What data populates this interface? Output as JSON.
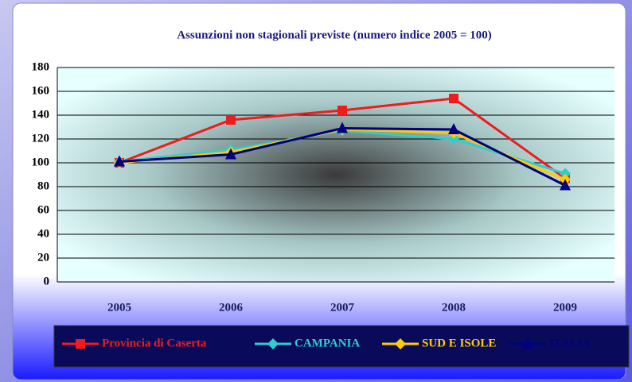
{
  "chart_data": {
    "type": "line",
    "title": "Assunzioni non stagionali previste (numero indice 2005 = 100)",
    "categories": [
      "2005",
      "2006",
      "2007",
      "2008",
      "2009"
    ],
    "series": [
      {
        "name": "Provincia di Caserta",
        "color": "#ee1c1c",
        "marker": "square",
        "values": [
          100,
          136,
          144,
          154,
          87
        ]
      },
      {
        "name": "CAMPANIA",
        "color": "#33cccc",
        "marker": "diamond",
        "values": [
          101,
          111,
          127,
          120,
          91
        ]
      },
      {
        "name": "SUD E ISOLE",
        "color": "#ffcc00",
        "marker": "diamond",
        "values": [
          100,
          109,
          128,
          125,
          86
        ]
      },
      {
        "name": "ITALIA",
        "color": "#000080",
        "marker": "triangle",
        "values": [
          101,
          107,
          129,
          128,
          81
        ]
      }
    ],
    "ylim": [
      0,
      180
    ],
    "yticks": [
      0,
      20,
      40,
      60,
      80,
      100,
      120,
      140,
      160,
      180
    ],
    "grid": true,
    "legend": "bottom"
  }
}
